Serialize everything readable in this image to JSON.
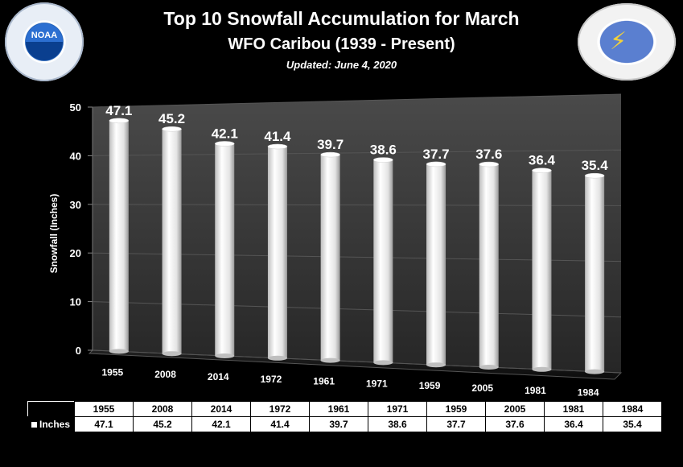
{
  "header": {
    "title": "Top 10 Snowfall Accumulation for March",
    "subtitle": "WFO Caribou (1939 - Present)",
    "updated": "Updated:  June 4, 2020"
  },
  "logos": {
    "noaa_word": "NOAA"
  },
  "colors": {
    "background": "#000000",
    "plot_back": "#3a3a3a",
    "bar": "#f5f5f5",
    "text": "#ffffff"
  },
  "chart_data": {
    "type": "bar",
    "categories": [
      "1955",
      "2008",
      "2014",
      "1972",
      "1961",
      "1971",
      "1959",
      "2005",
      "1981",
      "1984"
    ],
    "series": [
      {
        "name": "Inches",
        "values": [
          47.1,
          45.2,
          42.1,
          41.4,
          39.7,
          38.6,
          37.7,
          37.6,
          36.4,
          35.4
        ]
      }
    ],
    "data_labels": [
      "47.1",
      "45.2",
      "42.1",
      "41.4",
      "39.7",
      "38.6",
      "37.7",
      "37.6",
      "36.4",
      "35.4"
    ],
    "ylabel": "Snowfall (Inches)",
    "xlabel": "",
    "ylim": [
      0,
      50
    ],
    "yticks": [
      "0",
      "10",
      "20",
      "30",
      "40",
      "50"
    ],
    "grid": true,
    "legend": "data table row"
  },
  "table": {
    "row_label": "Inches"
  }
}
